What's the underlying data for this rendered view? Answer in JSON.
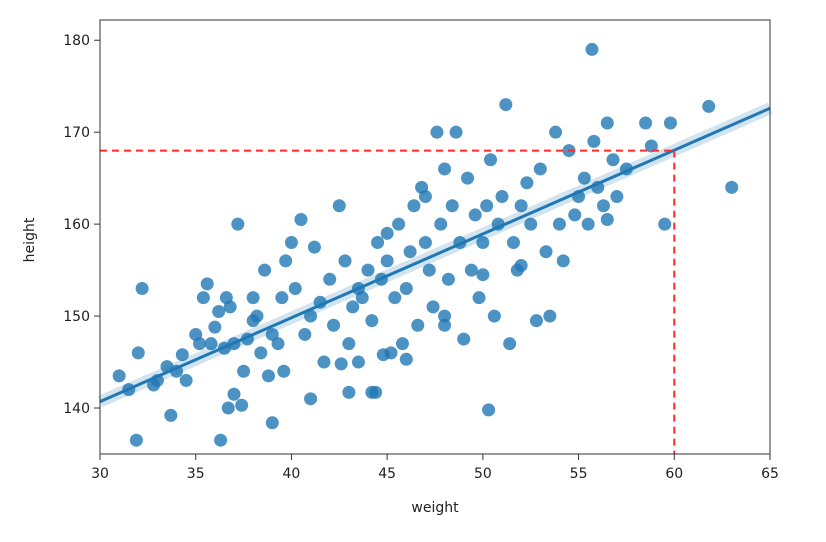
{
  "chart_data": {
    "type": "scatter",
    "x_label": "weight",
    "y_label": "height",
    "xlim": [
      30,
      65
    ],
    "ylim": [
      135,
      182.2
    ],
    "xticks": [
      30,
      35,
      40,
      45,
      50,
      55,
      60,
      65
    ],
    "yticks": [
      140,
      150,
      160,
      170,
      180
    ],
    "color": "#1f77b4",
    "x": [
      55.7,
      31.9,
      36.3,
      50.3,
      33.7,
      36.7,
      37.4,
      39,
      41,
      43,
      44.2,
      44.4,
      31,
      31.5,
      32,
      32.2,
      32.8,
      33,
      33.5,
      34,
      34.3,
      34.5,
      35,
      35.2,
      35.4,
      35.6,
      35.8,
      36,
      36.2,
      36.5,
      36.6,
      36.8,
      37,
      37.2,
      37.5,
      37.7,
      38,
      38.2,
      38.4,
      38.6,
      38.8,
      39,
      39.3,
      39.5,
      39.7,
      40,
      40.2,
      40.5,
      40.7,
      41,
      41.2,
      41.5,
      41.7,
      42,
      42.2,
      42.5,
      42.8,
      43,
      43.2,
      43.5,
      43.7,
      44,
      44.2,
      44.5,
      44.7,
      45,
      45.2,
      45.4,
      45.6,
      45.8,
      46,
      46.2,
      46.4,
      46.6,
      46.8,
      47,
      47.2,
      47.4,
      47.6,
      47.8,
      48,
      48.2,
      48.4,
      48.6,
      48.8,
      49,
      49.2,
      49.4,
      49.6,
      49.8,
      50,
      50.2,
      50.4,
      50.6,
      50.8,
      51,
      51.2,
      51.4,
      51.6,
      51.8,
      52,
      52.3,
      52.5,
      52.8,
      53,
      53.3,
      53.5,
      53.8,
      54,
      54.2,
      54.5,
      54.8,
      55,
      55.3,
      55.5,
      55.8,
      56,
      56.3,
      56.5,
      56.8,
      57,
      57.5,
      58.5,
      58.8,
      59.5,
      59.8,
      61.8,
      63,
      56.5,
      52,
      48,
      46,
      44.8,
      42.6,
      39.6,
      37,
      43.5,
      45,
      47,
      48,
      50,
      38
    ],
    "values": [
      179,
      136.5,
      136.5,
      139.8,
      139.2,
      140,
      140.3,
      138.4,
      141,
      141.7,
      141.7,
      141.7,
      143.5,
      142,
      146,
      153,
      142.5,
      143,
      144.5,
      144,
      145.8,
      143,
      148,
      147,
      152,
      153.5,
      147,
      148.8,
      150.5,
      146.5,
      152,
      151,
      147,
      160,
      144,
      147.5,
      149.5,
      150,
      146,
      155,
      143.5,
      148,
      147,
      152,
      156,
      158,
      153,
      160.5,
      148,
      150,
      157.5,
      151.5,
      145,
      154,
      149,
      162,
      156,
      147,
      151,
      145,
      152,
      155,
      149.5,
      158,
      154,
      156,
      146,
      152,
      160,
      147,
      153,
      157,
      162,
      149,
      164,
      158,
      155,
      151,
      170,
      160,
      166,
      154,
      162,
      170,
      158,
      147.5,
      165,
      155,
      161,
      152,
      158,
      162,
      167,
      150,
      160,
      163,
      173,
      147,
      158,
      155,
      162,
      164.5,
      160,
      149.5,
      166,
      157,
      150,
      170,
      160,
      156,
      168,
      161,
      163,
      165,
      160,
      169,
      164,
      162,
      171,
      167,
      163,
      166,
      171,
      168.5,
      160,
      171,
      172.8,
      164,
      160.5,
      155.5,
      149,
      145.3,
      145.8,
      144.8,
      144,
      141.5,
      153,
      159,
      163,
      150,
      154.5,
      152
    ],
    "regression_line": {
      "x": [
        30,
        65
      ],
      "values": [
        140.7,
        172.6
      ]
    },
    "reference_lines": {
      "x": 60,
      "y": 168,
      "color": "#ff2a2a"
    }
  }
}
